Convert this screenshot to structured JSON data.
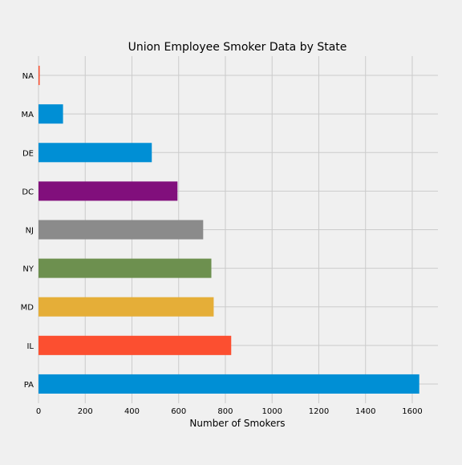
{
  "chart_data": {
    "type": "bar",
    "orientation": "horizontal",
    "title": "Union Employee Smoker Data by State",
    "xlabel": "Number of Smokers",
    "ylabel": "",
    "categories": [
      "PA",
      "IL",
      "MD",
      "NY",
      "NJ",
      "DC",
      "DE",
      "MA",
      "NA"
    ],
    "values": [
      1630,
      825,
      750,
      740,
      705,
      595,
      485,
      105,
      5
    ],
    "colors": [
      "#008fd5",
      "#fc4f30",
      "#e5ae38",
      "#6d904f",
      "#8b8b8b",
      "#810f7c",
      "#008fd5",
      "#008fd5",
      "#fc4f30"
    ],
    "xlim": [
      0,
      1710
    ],
    "xticks": [
      0,
      200,
      400,
      600,
      800,
      1000,
      1200,
      1400,
      1600
    ],
    "grid": true,
    "legend": "none"
  }
}
